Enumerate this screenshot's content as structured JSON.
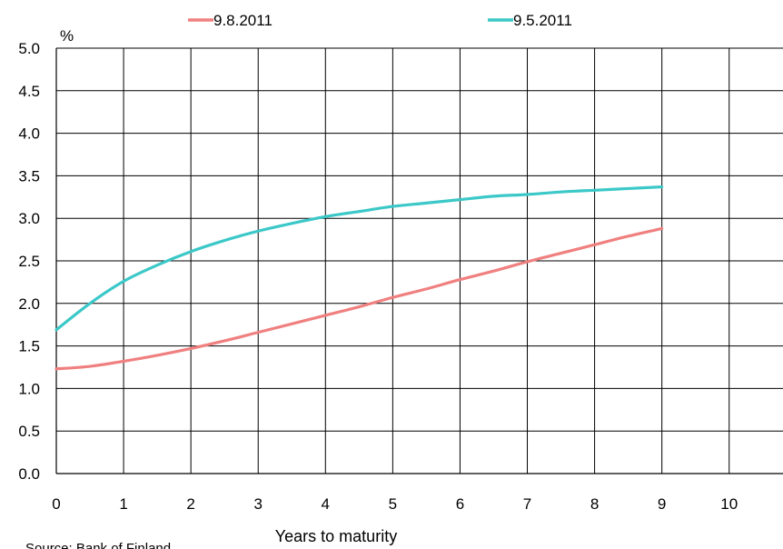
{
  "chart_data": {
    "type": "line",
    "ylabel": "%",
    "xlabel": "Years to maturity",
    "source": "Source: Bank of Finland",
    "xlim": [
      0,
      10.8
    ],
    "ylim": [
      0,
      5
    ],
    "x_ticks": [
      0,
      1,
      2,
      3,
      4,
      5,
      6,
      7,
      8,
      9,
      10
    ],
    "y_ticks": [
      0.0,
      0.5,
      1.0,
      1.5,
      2.0,
      2.5,
      3.0,
      3.5,
      4.0,
      4.5,
      5.0
    ],
    "y_tick_labels": [
      "0.0",
      "0.5",
      "1.0",
      "1.5",
      "2.0",
      "2.5",
      "3.0",
      "3.5",
      "4.0",
      "4.5",
      "5.0"
    ],
    "grid": true,
    "legend_position": "top",
    "series": [
      {
        "name": "9.8.2011",
        "color": "#f08080",
        "x": [
          0,
          0.5,
          1,
          1.5,
          2,
          2.5,
          3,
          3.5,
          4,
          4.5,
          5,
          5.5,
          6,
          6.5,
          7,
          7.5,
          8,
          8.5,
          9
        ],
        "y": [
          1.23,
          1.26,
          1.32,
          1.39,
          1.47,
          1.56,
          1.66,
          1.76,
          1.86,
          1.96,
          2.07,
          2.17,
          2.28,
          2.38,
          2.49,
          2.59,
          2.69,
          2.79,
          2.88
        ]
      },
      {
        "name": "9.5.2011",
        "color": "#3cc8c8",
        "x": [
          0,
          0.5,
          1,
          1.5,
          2,
          2.5,
          3,
          3.5,
          4,
          4.5,
          5,
          5.5,
          6,
          6.5,
          7,
          7.5,
          8,
          8.5,
          9
        ],
        "y": [
          1.69,
          2.0,
          2.26,
          2.45,
          2.61,
          2.74,
          2.85,
          2.94,
          3.02,
          3.08,
          3.14,
          3.18,
          3.22,
          3.26,
          3.28,
          3.31,
          3.33,
          3.35,
          3.37
        ]
      }
    ]
  }
}
